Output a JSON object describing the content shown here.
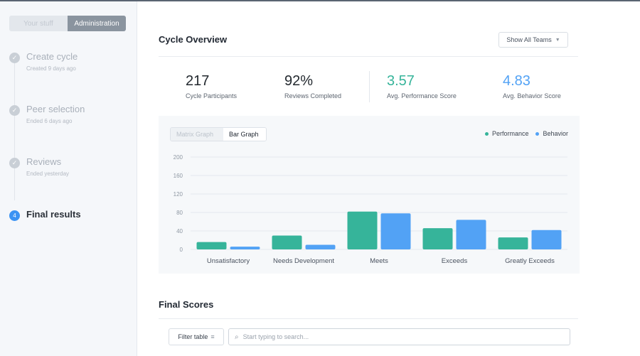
{
  "sidebar": {
    "tabs": [
      "Your stuff",
      "Administration"
    ],
    "steps": [
      {
        "title": "Create cycle",
        "subtitle": "Created 9 days ago",
        "icon": "check-icon"
      },
      {
        "title": "Peer selection",
        "subtitle": "Ended 6 days ago",
        "icon": "check-icon"
      },
      {
        "title": "Reviews",
        "subtitle": "Ended yesterday",
        "icon": "check-icon"
      },
      {
        "title": "Final results",
        "subtitle": "",
        "number": "4"
      }
    ]
  },
  "main": {
    "title": "Cycle Overview",
    "teams_dropdown": "Show All Teams",
    "stats": [
      {
        "value": "217",
        "label": "Cycle Participants"
      },
      {
        "value": "92%",
        "label": "Reviews Completed"
      },
      {
        "value": "3.57",
        "label": "Avg. Performance Score"
      },
      {
        "value": "4.83",
        "label": "Avg. Behavior Score"
      }
    ],
    "graph_tabs": [
      "Matrix Graph",
      "Bar Graph"
    ],
    "legend": [
      "Performance",
      "Behavior"
    ],
    "final_title": "Final Scores",
    "filter_label": "Filter table",
    "search_placeholder": "Start typing to search..."
  },
  "colors": {
    "performance": "#36b49a",
    "behavior": "#52a2f5",
    "accent_blue": "#3b93f3"
  },
  "chart_data": {
    "type": "bar",
    "categories": [
      "Unsatisfactory",
      "Needs Development",
      "Meets",
      "Exceeds",
      "Greatly Exceeds"
    ],
    "series": [
      {
        "name": "Performance",
        "values": [
          16,
          30,
          82,
          46,
          26
        ]
      },
      {
        "name": "Behavior",
        "values": [
          6,
          10,
          78,
          64,
          42
        ]
      }
    ],
    "yticks": [
      0,
      40,
      80,
      120,
      160,
      200
    ],
    "ylim": [
      0,
      200
    ],
    "grid": true,
    "legend": "top-right"
  }
}
